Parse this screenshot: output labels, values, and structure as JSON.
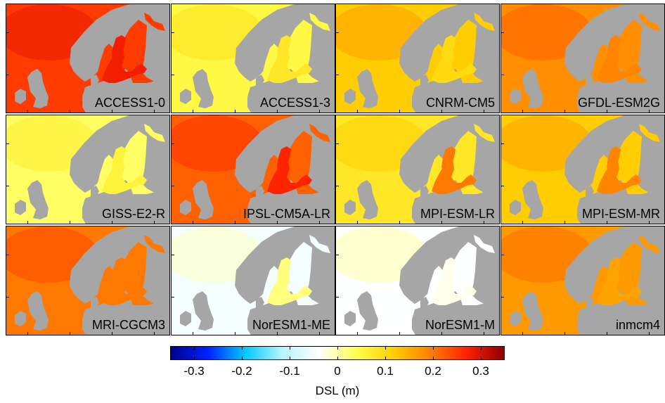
{
  "colors": {
    "land": "#a6a6a6",
    "colormap": [
      "#00008f",
      "#0020ff",
      "#00c8ff",
      "#b4f5ff",
      "#ffffff",
      "#ffff50",
      "#ffd000",
      "#ff8000",
      "#ff2000",
      "#8f0000"
    ]
  },
  "panels": [
    {
      "model": "ACCESS1-0",
      "sea_level_m": 0.25,
      "baltic_level_m": 0.28
    },
    {
      "model": "ACCESS1-3",
      "sea_level_m": 0.05,
      "baltic_level_m": 0.08
    },
    {
      "model": "CNRM-CM5",
      "sea_level_m": 0.12,
      "baltic_level_m": 0.1
    },
    {
      "model": "GFDL-ESM2G",
      "sea_level_m": 0.18,
      "baltic_level_m": 0.19
    },
    {
      "model": "GISS-E2-R",
      "sea_level_m": 0.03,
      "baltic_level_m": 0.06
    },
    {
      "model": "IPSL-CM5A-LR",
      "sea_level_m": 0.22,
      "baltic_level_m": 0.27
    },
    {
      "model": "MPI-ESM-LR",
      "sea_level_m": 0.08,
      "baltic_level_m": 0.2
    },
    {
      "model": "MPI-ESM-MR",
      "sea_level_m": 0.12,
      "baltic_level_m": 0.19
    },
    {
      "model": "MRI-CGCM3",
      "sea_level_m": 0.2,
      "baltic_level_m": 0.2
    },
    {
      "model": "NorESM1-ME",
      "sea_level_m": -0.05,
      "baltic_level_m": 0.02
    },
    {
      "model": "NorESM1-M",
      "sea_level_m": -0.04,
      "baltic_level_m": -0.03
    },
    {
      "model": "inmcm4",
      "sea_level_m": 0.17,
      "baltic_level_m": 0.16
    }
  ],
  "colorbar": {
    "min": -0.35,
    "max": 0.35,
    "ticks": [
      "-0.3",
      "-0.2",
      "-0.1",
      "0",
      "0.1",
      "0.2",
      "0.3"
    ],
    "tick_values": [
      -0.3,
      -0.2,
      -0.1,
      0,
      0.1,
      0.2,
      0.3
    ],
    "label": "DSL (m)"
  }
}
